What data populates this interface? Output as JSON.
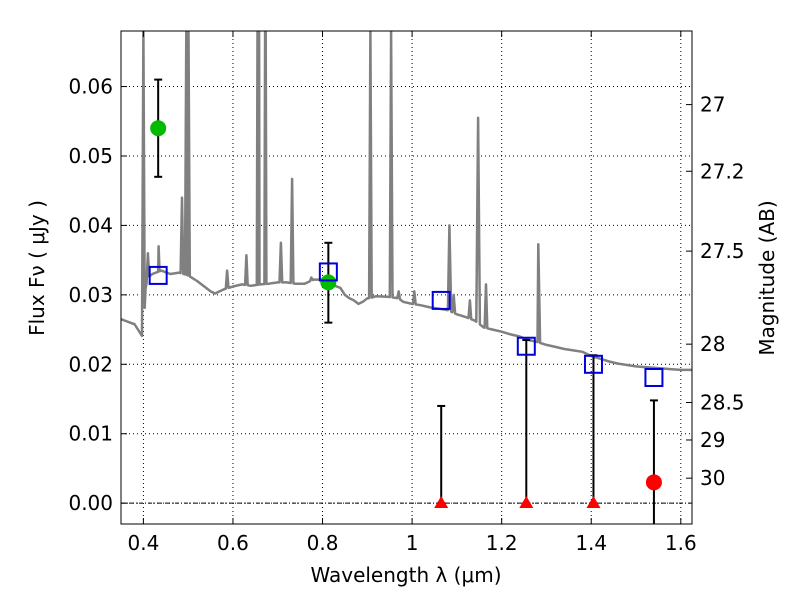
{
  "chart_data": {
    "type": "scatter",
    "xlabel": "Wavelength  λ (μm)",
    "ylabel": "Flux  Fν ( μJy )",
    "ylabel_right": "Magnitude (AB)",
    "xlim": [
      0.35,
      1.625
    ],
    "ylim": [
      -0.003,
      0.068
    ],
    "grid": true,
    "x_ticks": [
      0.4,
      0.6,
      0.8,
      1.0,
      1.2,
      1.4,
      1.6
    ],
    "x_tick_labels": [
      "0.4",
      "0.6",
      "0.8",
      "1",
      "1.2",
      "1.4",
      "1.6"
    ],
    "y_ticks": [
      0.0,
      0.01,
      0.02,
      0.03,
      0.04,
      0.05,
      0.06
    ],
    "y_tick_labels": [
      "0.00",
      "0.01",
      "0.02",
      "0.03",
      "0.04",
      "0.05",
      "0.06"
    ],
    "right_ticks": [
      {
        "label": "27",
        "flux": 0.0574
      },
      {
        "label": "27.2",
        "flux": 0.0478
      },
      {
        "label": "27.5",
        "flux": 0.0363
      },
      {
        "label": "28",
        "flux": 0.0229
      },
      {
        "label": "28.5",
        "flux": 0.0145
      },
      {
        "label": "29",
        "flux": 0.0091
      },
      {
        "label": "30",
        "flux": 0.0036
      }
    ],
    "model_spectrum": {
      "color": "#808080",
      "continuum": [
        [
          0.35,
          0.0265
        ],
        [
          0.37,
          0.026
        ],
        [
          0.38,
          0.0258
        ],
        [
          0.39,
          0.0248
        ],
        [
          0.4,
          0.0238
        ],
        [
          0.405,
          0.031
        ],
        [
          0.41,
          0.0325
        ],
        [
          0.42,
          0.033
        ],
        [
          0.44,
          0.0335
        ],
        [
          0.46,
          0.033
        ],
        [
          0.48,
          0.0332
        ],
        [
          0.5,
          0.0328
        ],
        [
          0.52,
          0.032
        ],
        [
          0.54,
          0.031
        ],
        [
          0.55,
          0.0305
        ],
        [
          0.56,
          0.0302
        ],
        [
          0.58,
          0.0308
        ],
        [
          0.6,
          0.0312
        ],
        [
          0.62,
          0.0315
        ],
        [
          0.64,
          0.0313
        ],
        [
          0.66,
          0.0315
        ],
        [
          0.68,
          0.0316
        ],
        [
          0.7,
          0.0318
        ],
        [
          0.72,
          0.0318
        ],
        [
          0.74,
          0.0316
        ],
        [
          0.76,
          0.0316
        ],
        [
          0.78,
          0.0322
        ],
        [
          0.8,
          0.0322
        ],
        [
          0.82,
          0.0315
        ],
        [
          0.84,
          0.031
        ],
        [
          0.85,
          0.03
        ],
        [
          0.86,
          0.0295
        ],
        [
          0.87,
          0.0292
        ],
        [
          0.88,
          0.0287
        ],
        [
          0.89,
          0.029
        ],
        [
          0.9,
          0.0295
        ],
        [
          0.91,
          0.0296
        ],
        [
          0.92,
          0.0298
        ],
        [
          0.95,
          0.0297
        ],
        [
          0.97,
          0.0295
        ],
        [
          0.98,
          0.029
        ],
        [
          1.0,
          0.0287
        ],
        [
          1.02,
          0.0285
        ],
        [
          1.04,
          0.0282
        ],
        [
          1.06,
          0.028
        ],
        [
          1.08,
          0.0278
        ],
        [
          1.1,
          0.0272
        ],
        [
          1.12,
          0.0268
        ],
        [
          1.14,
          0.0263
        ],
        [
          1.16,
          0.0253
        ],
        [
          1.18,
          0.025
        ],
        [
          1.2,
          0.0247
        ],
        [
          1.22,
          0.0243
        ],
        [
          1.24,
          0.024
        ],
        [
          1.26,
          0.0235
        ],
        [
          1.28,
          0.0232
        ],
        [
          1.3,
          0.0228
        ],
        [
          1.32,
          0.0225
        ],
        [
          1.34,
          0.0222
        ],
        [
          1.36,
          0.022
        ],
        [
          1.38,
          0.0218
        ],
        [
          1.4,
          0.0212
        ],
        [
          1.42,
          0.0208
        ],
        [
          1.44,
          0.0204
        ],
        [
          1.46,
          0.0201
        ],
        [
          1.48,
          0.0199
        ],
        [
          1.5,
          0.0197
        ],
        [
          1.52,
          0.0196
        ],
        [
          1.54,
          0.0195
        ],
        [
          1.56,
          0.0194
        ],
        [
          1.58,
          0.0193
        ],
        [
          1.6,
          0.0192
        ],
        [
          1.625,
          0.0192
        ]
      ],
      "emission_lines": [
        {
          "center": 0.373,
          "peak": 0.0254,
          "width": 0.003
        },
        {
          "center": 0.4,
          "peak": 0.068,
          "width": 0.003
        },
        {
          "center": 0.41,
          "peak": 0.036,
          "width": 0.003
        },
        {
          "center": 0.434,
          "peak": 0.037,
          "width": 0.003
        },
        {
          "center": 0.436,
          "peak": 0.0335,
          "width": 0.003
        },
        {
          "center": 0.4861,
          "peak": 0.044,
          "width": 0.003
        },
        {
          "center": 0.4959,
          "peak": 0.068,
          "width": 0.003
        },
        {
          "center": 0.5007,
          "peak": 0.068,
          "width": 0.003
        },
        {
          "center": 0.587,
          "peak": 0.0335,
          "width": 0.003
        },
        {
          "center": 0.63,
          "peak": 0.0357,
          "width": 0.003
        },
        {
          "center": 0.6548,
          "peak": 0.068,
          "width": 0.003
        },
        {
          "center": 0.6563,
          "peak": 0.068,
          "width": 0.003
        },
        {
          "center": 0.6584,
          "peak": 0.068,
          "width": 0.003
        },
        {
          "center": 0.6717,
          "peak": 0.068,
          "width": 0.003
        },
        {
          "center": 0.6731,
          "peak": 0.068,
          "width": 0.003
        },
        {
          "center": 0.707,
          "peak": 0.0375,
          "width": 0.003
        },
        {
          "center": 0.732,
          "peak": 0.0467,
          "width": 0.003
        },
        {
          "center": 0.775,
          "peak": 0.0325,
          "width": 0.003
        },
        {
          "center": 0.9069,
          "peak": 0.068,
          "width": 0.003
        },
        {
          "center": 0.9532,
          "peak": 0.068,
          "width": 0.003
        },
        {
          "center": 0.97,
          "peak": 0.0305,
          "width": 0.003
        },
        {
          "center": 1.005,
          "peak": 0.0305,
          "width": 0.003
        },
        {
          "center": 1.0833,
          "peak": 0.04,
          "width": 0.004
        },
        {
          "center": 1.093,
          "peak": 0.03,
          "width": 0.003
        },
        {
          "center": 1.129,
          "peak": 0.0292,
          "width": 0.003
        },
        {
          "center": 1.1474,
          "peak": 0.0555,
          "width": 0.004
        },
        {
          "center": 1.165,
          "peak": 0.0315,
          "width": 0.003
        },
        {
          "center": 1.2818,
          "peak": 0.0373,
          "width": 0.004
        }
      ]
    },
    "series": [
      {
        "name": "",
        "marker": "circle",
        "color": "#00bb00",
        "points": [
          {
            "x": 0.433,
            "y": 0.054,
            "ylow": 0.047,
            "yhigh": 0.061
          },
          {
            "x": 0.813,
            "y": 0.0318,
            "ylow": 0.026,
            "yhigh": 0.0375
          }
        ]
      },
      {
        "name": "",
        "marker": "circle",
        "color": "#ff0000",
        "points": [
          {
            "x": 1.54,
            "y": 0.003,
            "ylow": -0.0035,
            "yhigh": 0.0148
          }
        ]
      },
      {
        "name": "",
        "marker": "triangle",
        "color": "#ff0000",
        "points": [
          {
            "x": 1.065,
            "y": 0.0,
            "ylow": 0.0,
            "yhigh": 0.014
          },
          {
            "x": 1.255,
            "y": 0.0,
            "ylow": 0.0,
            "yhigh": 0.0235
          },
          {
            "x": 1.405,
            "y": 0.0,
            "ylow": 0.0,
            "yhigh": 0.0213
          }
        ]
      },
      {
        "name": "",
        "marker": "open-square",
        "color": "#0000dd",
        "points": [
          {
            "x": 0.433,
            "y": 0.0328
          },
          {
            "x": 0.813,
            "y": 0.0333
          },
          {
            "x": 1.065,
            "y": 0.0292
          },
          {
            "x": 1.255,
            "y": 0.0226
          },
          {
            "x": 1.405,
            "y": 0.02
          },
          {
            "x": 1.54,
            "y": 0.0181
          }
        ]
      }
    ]
  }
}
